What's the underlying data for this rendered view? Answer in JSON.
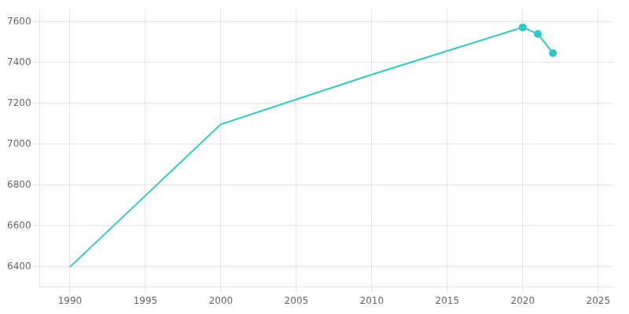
{
  "chart_data": {
    "type": "line",
    "x": [
      1990,
      2000,
      2010,
      2020,
      2021,
      2022
    ],
    "series": [
      {
        "values": [
          6398,
          7097,
          7341,
          7572,
          7540,
          7446
        ],
        "color": "#2DC8C8",
        "marker": "none",
        "line_style": "solid"
      },
      {
        "values": [
          null,
          null,
          null,
          7572,
          7540,
          7446
        ],
        "color": "#2DC8C8",
        "marker": "o",
        "line_style": "none"
      }
    ],
    "xlim": [
      1988,
      2026
    ],
    "ylim": [
      6300,
      7660
    ],
    "xticks": [
      1990,
      1995,
      2000,
      2005,
      2010,
      2015,
      2020,
      2025
    ],
    "yticks": [
      6400,
      6600,
      6800,
      7000,
      7200,
      7400,
      7600
    ],
    "grid": true
  }
}
